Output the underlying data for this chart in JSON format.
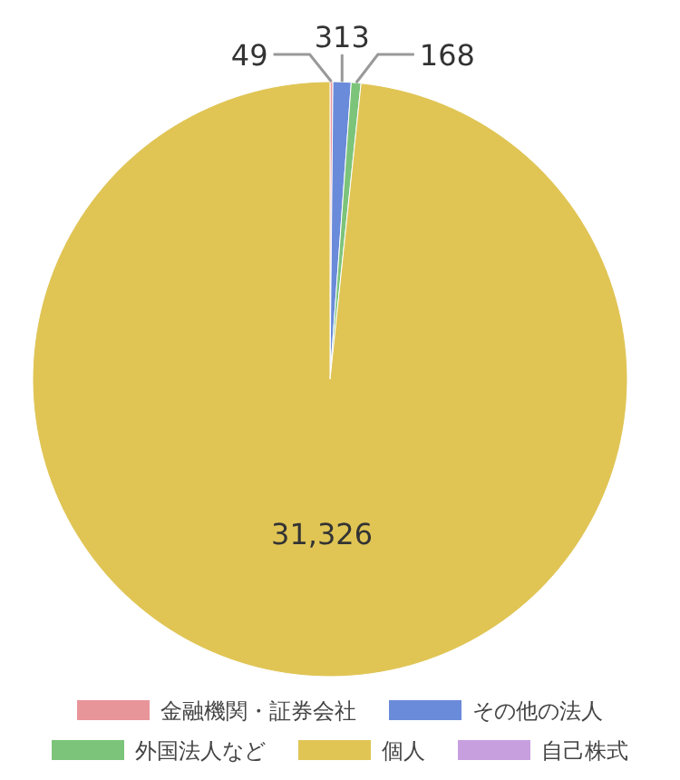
{
  "chart_data": {
    "type": "pie",
    "categories": [
      "金融機関・証券会社",
      "その他の法人",
      "外国法人など",
      "個人",
      "自己株式"
    ],
    "values": [
      49,
      313,
      168,
      31326,
      null
    ],
    "colors": [
      "#e8959a",
      "#6a8bd9",
      "#7cc47a",
      "#e0c555",
      "#c79fdf"
    ],
    "value_labels": [
      "49",
      "313",
      "168",
      "31,326",
      null
    ],
    "legend": "bottom"
  }
}
